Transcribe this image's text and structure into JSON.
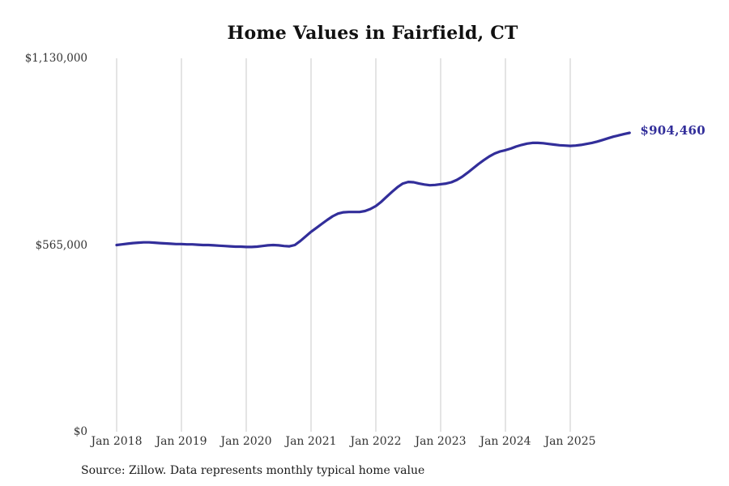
{
  "title": "Home Values in Fairfield, CT",
  "source_note": "Source: Zillow. Data represents monthly typical home value",
  "end_label": "$904,460",
  "colors": {
    "line": "#322e9a",
    "grid": "#c8c8c8",
    "tick_text": "#333333",
    "title_text": "#111111",
    "background": "#ffffff"
  },
  "chart_data": {
    "type": "line",
    "title": "Home Values in Fairfield, CT",
    "xlabel": "",
    "ylabel": "",
    "frequency": "monthly",
    "x_range": [
      "Jan 2018",
      "Dec 2025"
    ],
    "ylim": [
      0,
      1130000
    ],
    "grid": "vertical-only",
    "legend": "none",
    "x_tick_labels": [
      "Jan 2018",
      "Jan 2019",
      "Jan 2020",
      "Jan 2021",
      "Jan 2022",
      "Jan 2023",
      "Jan 2024",
      "Jan 2025"
    ],
    "y_ticks": [
      {
        "value": 0,
        "label": "$0"
      },
      {
        "value": 565000,
        "label": "$565,000"
      },
      {
        "value": 1130000,
        "label": "$1,130,000"
      }
    ],
    "last_value": 904460,
    "last_value_label": "$904,460",
    "values": [
      565000,
      567000,
      569000,
      571000,
      572000,
      573000,
      573000,
      572000,
      571000,
      570000,
      569000,
      568000,
      568000,
      567000,
      567000,
      566000,
      565000,
      565000,
      564000,
      563000,
      562000,
      561000,
      560000,
      560000,
      559000,
      559000,
      560000,
      562000,
      564000,
      565000,
      564000,
      562000,
      561000,
      565000,
      577000,
      591000,
      605000,
      617000,
      629000,
      641000,
      652000,
      660000,
      664000,
      665000,
      665000,
      665000,
      668000,
      674000,
      683000,
      696000,
      711000,
      726000,
      740000,
      751000,
      756000,
      755000,
      751000,
      748000,
      746000,
      747000,
      749000,
      751000,
      755000,
      762000,
      772000,
      784000,
      797000,
      810000,
      822000,
      833000,
      842000,
      848000,
      852000,
      857000,
      863000,
      868000,
      872000,
      874000,
      874000,
      873000,
      871000,
      869000,
      867000,
      866000,
      865000,
      866000,
      868000,
      871000,
      874000,
      878000,
      883000,
      888000,
      893000,
      897000,
      901000,
      904460
    ]
  }
}
